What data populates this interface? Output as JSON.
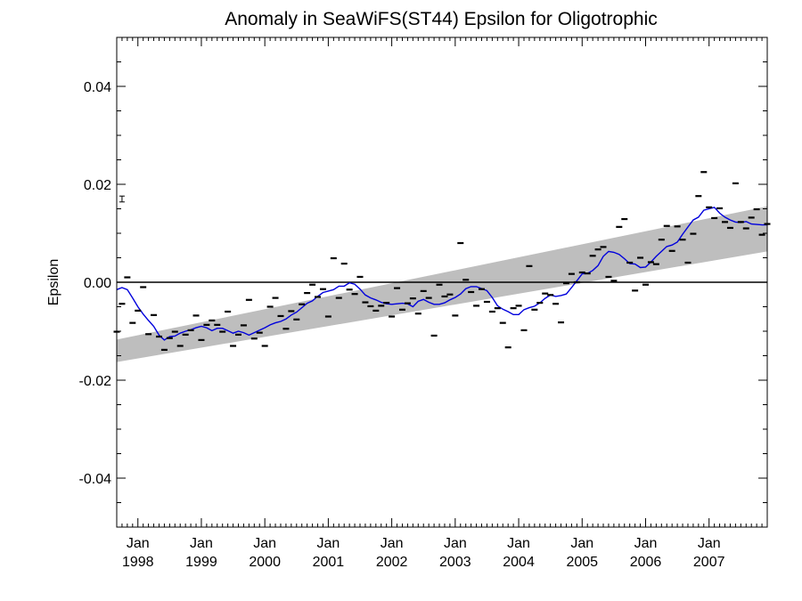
{
  "chart_data": {
    "type": "line",
    "title": "Anomaly in SeaWiFS(ST44) Epsilon for Oligotrophic",
    "xlabel": "",
    "ylabel": "Epsilon",
    "xlim": [
      "1997-09",
      "2007-12"
    ],
    "ylim": [
      -0.05,
      0.05
    ],
    "x_ticks": [
      {
        "month": "Jan",
        "year": "1998",
        "date": "1998-01"
      },
      {
        "month": "Jan",
        "year": "1999",
        "date": "1999-01"
      },
      {
        "month": "Jan",
        "year": "2000",
        "date": "2000-01"
      },
      {
        "month": "Jan",
        "year": "2001",
        "date": "2001-01"
      },
      {
        "month": "Jan",
        "year": "2002",
        "date": "2002-01"
      },
      {
        "month": "Jan",
        "year": "2003",
        "date": "2003-01"
      },
      {
        "month": "Jan",
        "year": "2004",
        "date": "2004-01"
      },
      {
        "month": "Jan",
        "year": "2005",
        "date": "2005-01"
      },
      {
        "month": "Jan",
        "year": "2006",
        "date": "2006-01"
      },
      {
        "month": "Jan",
        "year": "2007",
        "date": "2007-01"
      }
    ],
    "y_ticks": [
      {
        "value": 0.04,
        "label": "0.04"
      },
      {
        "value": 0.02,
        "label": "0.02"
      },
      {
        "value": 0.0,
        "label": "0.00"
      },
      {
        "value": -0.02,
        "label": "-0.02"
      },
      {
        "value": -0.04,
        "label": "-0.04"
      }
    ],
    "zero_line": 0.0,
    "error_bar": {
      "date": "1997-10",
      "value": 0.017,
      "half_width": 0.0006
    },
    "trend_band": {
      "color": "#bebebe",
      "start": {
        "date": "1997-09",
        "lower": -0.0163,
        "upper": -0.0117
      },
      "end": {
        "date": "2007-12",
        "lower": 0.0063,
        "upper": 0.0155
      }
    },
    "smoothed_series": {
      "color": "#0000dd",
      "points": [
        [
          "1997-09",
          -0.0015
        ],
        [
          "1997-10",
          -0.0011
        ],
        [
          "1997-11",
          -0.0015
        ],
        [
          "1997-12",
          -0.0032
        ],
        [
          "1998-01",
          -0.005
        ],
        [
          "1998-02",
          -0.0065
        ],
        [
          "1998-03",
          -0.0078
        ],
        [
          "1998-04",
          -0.009
        ],
        [
          "1998-05",
          -0.0108
        ],
        [
          "1998-06",
          -0.0118
        ],
        [
          "1998-07",
          -0.0111
        ],
        [
          "1998-08",
          -0.011
        ],
        [
          "1998-09",
          -0.0104
        ],
        [
          "1998-10",
          -0.01
        ],
        [
          "1998-11",
          -0.0097
        ],
        [
          "1998-12",
          -0.0093
        ],
        [
          "1999-01",
          -0.009
        ],
        [
          "1999-02",
          -0.0093
        ],
        [
          "1999-03",
          -0.0099
        ],
        [
          "1999-04",
          -0.0094
        ],
        [
          "1999-05",
          -0.0094
        ],
        [
          "1999-06",
          -0.0099
        ],
        [
          "1999-07",
          -0.0104
        ],
        [
          "1999-08",
          -0.01
        ],
        [
          "1999-09",
          -0.0103
        ],
        [
          "1999-10",
          -0.0108
        ],
        [
          "1999-11",
          -0.0103
        ],
        [
          "1999-12",
          -0.0098
        ],
        [
          "2000-01",
          -0.0093
        ],
        [
          "2000-02",
          -0.0087
        ],
        [
          "2000-03",
          -0.0083
        ],
        [
          "2000-04",
          -0.008
        ],
        [
          "2000-05",
          -0.0075
        ],
        [
          "2000-06",
          -0.0067
        ],
        [
          "2000-07",
          -0.0061
        ],
        [
          "2000-08",
          -0.0052
        ],
        [
          "2000-09",
          -0.0043
        ],
        [
          "2000-10",
          -0.0038
        ],
        [
          "2000-11",
          -0.0029
        ],
        [
          "2000-12",
          -0.0021
        ],
        [
          "2001-01",
          -0.0018
        ],
        [
          "2001-02",
          -0.0015
        ],
        [
          "2001-03",
          -0.0008
        ],
        [
          "2001-04",
          -0.0008
        ],
        [
          "2001-05",
          -0.0001
        ],
        [
          "2001-06",
          -0.0004
        ],
        [
          "2001-07",
          -0.0014
        ],
        [
          "2001-08",
          -0.0026
        ],
        [
          "2001-09",
          -0.0032
        ],
        [
          "2001-10",
          -0.0036
        ],
        [
          "2001-11",
          -0.0041
        ],
        [
          "2001-12",
          -0.0044
        ],
        [
          "2002-01",
          -0.0045
        ],
        [
          "2002-02",
          -0.0044
        ],
        [
          "2002-03",
          -0.0043
        ],
        [
          "2002-04",
          -0.0044
        ],
        [
          "2002-05",
          -0.005
        ],
        [
          "2002-06",
          -0.0039
        ],
        [
          "2002-07",
          -0.0035
        ],
        [
          "2002-08",
          -0.0041
        ],
        [
          "2002-09",
          -0.0045
        ],
        [
          "2002-10",
          -0.0045
        ],
        [
          "2002-11",
          -0.0042
        ],
        [
          "2002-12",
          -0.0036
        ],
        [
          "2003-01",
          -0.0031
        ],
        [
          "2003-02",
          -0.0024
        ],
        [
          "2003-03",
          -0.0013
        ],
        [
          "2003-04",
          -0.0009
        ],
        [
          "2003-05",
          -0.0009
        ],
        [
          "2003-06",
          -0.0013
        ],
        [
          "2003-07",
          -0.0017
        ],
        [
          "2003-08",
          -0.0031
        ],
        [
          "2003-09",
          -0.0048
        ],
        [
          "2003-10",
          -0.0055
        ],
        [
          "2003-11",
          -0.006
        ],
        [
          "2003-12",
          -0.0066
        ],
        [
          "2004-01",
          -0.0066
        ],
        [
          "2004-02",
          -0.0056
        ],
        [
          "2004-03",
          -0.0052
        ],
        [
          "2004-04",
          -0.0049
        ],
        [
          "2004-05",
          -0.0042
        ],
        [
          "2004-06",
          -0.0033
        ],
        [
          "2004-07",
          -0.0026
        ],
        [
          "2004-08",
          -0.0029
        ],
        [
          "2004-09",
          -0.0027
        ],
        [
          "2004-10",
          -0.0024
        ],
        [
          "2004-11",
          -0.0011
        ],
        [
          "2004-12",
          0.0003
        ],
        [
          "2005-01",
          0.0017
        ],
        [
          "2005-02",
          0.0018
        ],
        [
          "2005-03",
          0.0024
        ],
        [
          "2005-04",
          0.0034
        ],
        [
          "2005-05",
          0.0053
        ],
        [
          "2005-06",
          0.0063
        ],
        [
          "2005-07",
          0.0061
        ],
        [
          "2005-08",
          0.0057
        ],
        [
          "2005-09",
          0.0048
        ],
        [
          "2005-10",
          0.0038
        ],
        [
          "2005-11",
          0.0037
        ],
        [
          "2005-12",
          0.003
        ],
        [
          "2006-01",
          0.0031
        ],
        [
          "2006-02",
          0.0041
        ],
        [
          "2006-03",
          0.0053
        ],
        [
          "2006-04",
          0.0063
        ],
        [
          "2006-05",
          0.0073
        ],
        [
          "2006-06",
          0.0076
        ],
        [
          "2006-07",
          0.0082
        ],
        [
          "2006-08",
          0.0098
        ],
        [
          "2006-09",
          0.0113
        ],
        [
          "2006-10",
          0.0127
        ],
        [
          "2006-11",
          0.0133
        ],
        [
          "2006-12",
          0.0147
        ],
        [
          "2007-01",
          0.015
        ],
        [
          "2007-02",
          0.0153
        ],
        [
          "2007-03",
          0.0141
        ],
        [
          "2007-04",
          0.0133
        ],
        [
          "2007-05",
          0.0127
        ],
        [
          "2007-06",
          0.0123
        ],
        [
          "2007-07",
          0.0122
        ],
        [
          "2007-08",
          0.0124
        ],
        [
          "2007-09",
          0.0119
        ],
        [
          "2007-10",
          0.0118
        ],
        [
          "2007-11",
          0.0117
        ],
        [
          "2007-12",
          0.0117
        ]
      ]
    },
    "monthly_points": [
      [
        "1997-09",
        -0.0101
      ],
      [
        "1997-10",
        -0.0044
      ],
      [
        "1997-11",
        0.001
      ],
      [
        "1997-12",
        -0.0083
      ],
      [
        "1998-01",
        -0.0058
      ],
      [
        "1998-02",
        -0.001
      ],
      [
        "1998-03",
        -0.0106
      ],
      [
        "1998-04",
        -0.0067
      ],
      [
        "1998-05",
        -0.0111
      ],
      [
        "1998-06",
        -0.0138
      ],
      [
        "1998-07",
        -0.0114
      ],
      [
        "1998-08",
        -0.0101
      ],
      [
        "1998-09",
        -0.013
      ],
      [
        "1998-10",
        -0.0107
      ],
      [
        "1998-11",
        -0.0098
      ],
      [
        "1998-12",
        -0.0068
      ],
      [
        "1999-01",
        -0.0118
      ],
      [
        "1999-02",
        -0.0087
      ],
      [
        "1999-03",
        -0.0078
      ],
      [
        "1999-04",
        -0.0087
      ],
      [
        "1999-05",
        -0.0101
      ],
      [
        "1999-06",
        -0.006
      ],
      [
        "1999-07",
        -0.013
      ],
      [
        "1999-08",
        -0.0107
      ],
      [
        "1999-09",
        -0.0088
      ],
      [
        "1999-10",
        -0.0036
      ],
      [
        "1999-11",
        -0.0115
      ],
      [
        "1999-12",
        -0.0103
      ],
      [
        "2000-01",
        -0.013
      ],
      [
        "2000-02",
        -0.005
      ],
      [
        "2000-03",
        -0.0032
      ],
      [
        "2000-04",
        -0.0069
      ],
      [
        "2000-05",
        -0.0095
      ],
      [
        "2000-06",
        -0.0059
      ],
      [
        "2000-07",
        -0.0076
      ],
      [
        "2000-08",
        -0.0045
      ],
      [
        "2000-09",
        -0.0022
      ],
      [
        "2000-10",
        -0.0005
      ],
      [
        "2000-11",
        -0.003
      ],
      [
        "2000-12",
        -0.0014
      ],
      [
        "2001-01",
        -0.007
      ],
      [
        "2001-02",
        0.0049
      ],
      [
        "2001-03",
        -0.0032
      ],
      [
        "2001-04",
        0.0038
      ],
      [
        "2001-05",
        -0.0015
      ],
      [
        "2001-06",
        -0.0024
      ],
      [
        "2001-07",
        0.0011
      ],
      [
        "2001-08",
        -0.0041
      ],
      [
        "2001-09",
        -0.0049
      ],
      [
        "2001-10",
        -0.0058
      ],
      [
        "2001-11",
        -0.0048
      ],
      [
        "2001-12",
        -0.0042
      ],
      [
        "2002-01",
        -0.007
      ],
      [
        "2002-02",
        -0.0012
      ],
      [
        "2002-03",
        -0.0056
      ],
      [
        "2002-04",
        -0.0043
      ],
      [
        "2002-05",
        -0.0033
      ],
      [
        "2002-06",
        -0.0064
      ],
      [
        "2002-07",
        -0.0018
      ],
      [
        "2002-08",
        -0.0032
      ],
      [
        "2002-09",
        -0.0109
      ],
      [
        "2002-10",
        -0.0005
      ],
      [
        "2002-11",
        -0.0029
      ],
      [
        "2002-12",
        -0.0025
      ],
      [
        "2003-01",
        -0.0068
      ],
      [
        "2003-02",
        0.008
      ],
      [
        "2003-03",
        0.0005
      ],
      [
        "2003-04",
        -0.002
      ],
      [
        "2003-05",
        -0.0048
      ],
      [
        "2003-06",
        -0.0014
      ],
      [
        "2003-07",
        -0.004
      ],
      [
        "2003-08",
        -0.006
      ],
      [
        "2003-09",
        -0.0053
      ],
      [
        "2003-10",
        -0.0083
      ],
      [
        "2003-11",
        -0.0133
      ],
      [
        "2003-12",
        -0.0053
      ],
      [
        "2004-01",
        -0.0048
      ],
      [
        "2004-02",
        -0.0098
      ],
      [
        "2004-03",
        0.0033
      ],
      [
        "2004-04",
        -0.0056
      ],
      [
        "2004-05",
        -0.0042
      ],
      [
        "2004-06",
        -0.0023
      ],
      [
        "2004-07",
        -0.0026
      ],
      [
        "2004-08",
        -0.0044
      ],
      [
        "2004-09",
        -0.0082
      ],
      [
        "2004-10",
        -0.0002
      ],
      [
        "2004-11",
        0.0017
      ],
      [
        "2004-12",
        0.0
      ],
      [
        "2005-01",
        0.002
      ],
      [
        "2005-02",
        0.0018
      ],
      [
        "2005-03",
        0.0054
      ],
      [
        "2005-04",
        0.0067
      ],
      [
        "2005-05",
        0.0072
      ],
      [
        "2005-06",
        0.0011
      ],
      [
        "2005-07",
        0.0003
      ],
      [
        "2005-08",
        0.0113
      ],
      [
        "2005-09",
        0.0129
      ],
      [
        "2005-10",
        0.004
      ],
      [
        "2005-11",
        -0.0017
      ],
      [
        "2005-12",
        0.005
      ],
      [
        "2006-01",
        -0.0005
      ],
      [
        "2006-02",
        0.0041
      ],
      [
        "2006-03",
        0.0037
      ],
      [
        "2006-04",
        0.0087
      ],
      [
        "2006-05",
        0.0115
      ],
      [
        "2006-06",
        0.0064
      ],
      [
        "2006-07",
        0.0114
      ],
      [
        "2006-08",
        0.0087
      ],
      [
        "2006-09",
        0.004
      ],
      [
        "2006-10",
        0.0099
      ],
      [
        "2006-11",
        0.0176
      ],
      [
        "2006-12",
        0.0225
      ],
      [
        "2007-01",
        0.0153
      ],
      [
        "2007-02",
        0.0131
      ],
      [
        "2007-03",
        0.0151
      ],
      [
        "2007-04",
        0.0123
      ],
      [
        "2007-05",
        0.0111
      ],
      [
        "2007-06",
        0.0202
      ],
      [
        "2007-07",
        0.0123
      ],
      [
        "2007-08",
        0.011
      ],
      [
        "2007-09",
        0.0132
      ],
      [
        "2007-10",
        0.0149
      ],
      [
        "2007-11",
        0.0097
      ],
      [
        "2007-12",
        0.0119
      ]
    ]
  }
}
